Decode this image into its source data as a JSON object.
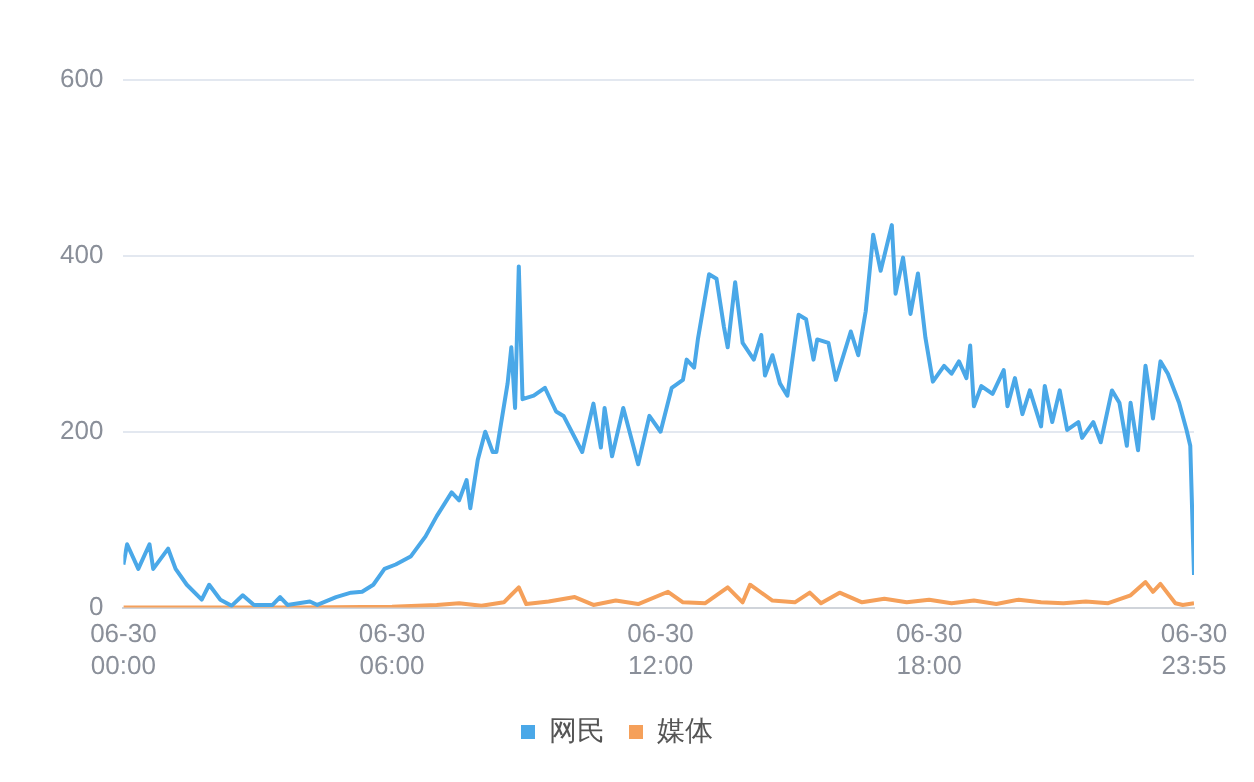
{
  "chart_data": {
    "type": "line",
    "xlim": [
      "--06-30T00:00",
      "--06-30T23:55"
    ],
    "ylim": [
      0,
      600
    ],
    "yticks": [
      0,
      200,
      400,
      600
    ],
    "xticks": [
      {
        "value": "--06-30T00:00",
        "label": "06-30\n00:00"
      },
      {
        "value": "--06-30T06:00",
        "label": "06-30\n06:00"
      },
      {
        "value": "--06-30T12:00",
        "label": "06-30\n12:00"
      },
      {
        "value": "--06-30T18:00",
        "label": "06-30\n18:00"
      },
      {
        "value": "--06-30T23:55",
        "label": "06-30\n23:55"
      }
    ],
    "grid": "y",
    "legend": "bottom",
    "marker": "none",
    "line_style": "solid",
    "series": [
      {
        "name": "网民",
        "color": "#4aa8e8",
        "x": [
          "--06-30T00:00",
          "--06-30T00:05",
          "--06-30T00:20",
          "--06-30T00:35",
          "--06-30T00:40",
          "--06-30T01:00",
          "--06-30T01:10",
          "--06-30T01:25",
          "--06-30T01:45",
          "--06-30T01:55",
          "--06-30T02:10",
          "--06-30T02:25",
          "--06-30T02:40",
          "--06-30T02:55",
          "--06-30T03:20",
          "--06-30T03:30",
          "--06-30T03:40",
          "--06-30T04:10",
          "--06-30T04:20",
          "--06-30T04:45",
          "--06-30T05:05",
          "--06-30T05:20",
          "--06-30T05:35",
          "--06-30T05:50",
          "--06-30T06:05",
          "--06-30T06:25",
          "--06-30T06:45",
          "--06-30T07:00",
          "--06-30T07:20",
          "--06-30T07:30",
          "--06-30T07:40",
          "--06-30T07:45",
          "--06-30T07:55",
          "--06-30T08:05",
          "--06-30T08:15",
          "--06-30T08:20",
          "--06-30T08:35",
          "--06-30T08:40",
          "--06-30T08:45",
          "--06-30T08:50",
          "--06-30T08:55",
          "--06-30T09:10",
          "--06-30T09:25",
          "--06-30T09:40",
          "--06-30T09:50",
          "--06-30T10:15",
          "--06-30T10:30",
          "--06-30T10:40",
          "--06-30T10:45",
          "--06-30T10:55",
          "--06-30T11:10",
          "--06-30T11:30",
          "--06-30T11:45",
          "--06-30T12:00",
          "--06-30T12:15",
          "--06-30T12:30",
          "--06-30T12:35",
          "--06-30T12:45",
          "--06-30T12:50",
          "--06-30T13:05",
          "--06-30T13:15",
          "--06-30T13:25",
          "--06-30T13:30",
          "--06-30T13:40",
          "--06-30T13:50",
          "--06-30T14:05",
          "--06-30T14:15",
          "--06-30T14:20",
          "--06-30T14:30",
          "--06-30T14:40",
          "--06-30T14:50",
          "--06-30T15:05",
          "--06-30T15:15",
          "--06-30T15:25",
          "--06-30T15:30",
          "--06-30T15:45",
          "--06-30T15:55",
          "--06-30T16:15",
          "--06-30T16:25",
          "--06-30T16:35",
          "--06-30T16:45",
          "--06-30T16:55",
          "--06-30T17:10",
          "--06-30T17:15",
          "--06-30T17:25",
          "--06-30T17:35",
          "--06-30T17:45",
          "--06-30T17:55",
          "--06-30T18:05",
          "--06-30T18:20",
          "--06-30T18:30",
          "--06-30T18:40",
          "--06-30T18:50",
          "--06-30T18:55",
          "--06-30T19:00",
          "--06-30T19:10",
          "--06-30T19:25",
          "--06-30T19:40",
          "--06-30T19:45",
          "--06-30T19:55",
          "--06-30T20:05",
          "--06-30T20:15",
          "--06-30T20:30",
          "--06-30T20:35",
          "--06-30T20:45",
          "--06-30T20:55",
          "--06-30T21:05",
          "--06-30T21:20",
          "--06-30T21:25",
          "--06-30T21:40",
          "--06-30T21:50",
          "--06-30T22:05",
          "--06-30T22:15",
          "--06-30T22:25",
          "--06-30T22:30",
          "--06-30T22:40",
          "--06-30T22:50",
          "--06-30T22:55",
          "--06-30T23:00",
          "--06-30T23:10",
          "--06-30T23:20",
          "--06-30T23:35",
          "--06-30T23:45",
          "--06-30T23:50",
          "--06-30T23:55"
        ],
        "values": [
          49,
          72,
          44,
          72,
          44,
          67,
          44,
          26,
          9,
          26,
          9,
          2,
          14,
          3,
          3,
          12,
          3,
          7,
          3,
          12,
          17,
          18,
          26,
          44,
          49,
          58,
          81,
          104,
          131,
          122,
          145,
          113,
          168,
          200,
          177,
          177,
          255,
          296,
          227,
          388,
          237,
          241,
          250,
          223,
          218,
          177,
          232,
          182,
          227,
          172,
          227,
          163,
          218,
          200,
          250,
          259,
          282,
          273,
          305,
          379,
          374,
          319,
          296,
          370,
          301,
          282,
          310,
          264,
          287,
          255,
          241,
          333,
          328,
          282,
          305,
          301,
          259,
          314,
          287,
          337,
          424,
          383,
          435,
          357,
          398,
          334,
          380,
          307,
          257,
          275,
          266,
          280,
          261,
          298,
          229,
          252,
          243,
          270,
          229,
          261,
          220,
          247,
          206,
          252,
          211,
          247,
          202,
          211,
          193,
          211,
          188,
          247,
          233,
          184,
          233,
          179,
          275,
          247,
          215,
          280,
          266,
          233,
          202,
          184,
          37
        ]
      },
      {
        "name": "媒体",
        "color": "#f5a05a",
        "x": [
          "--06-30T00:00",
          "--06-30T02:00",
          "--06-30T04:00",
          "--06-30T06:00",
          "--06-30T07:00",
          "--06-30T07:30",
          "--06-30T08:00",
          "--06-30T08:30",
          "--06-30T08:50",
          "--06-30T09:00",
          "--06-30T09:30",
          "--06-30T10:05",
          "--06-30T10:30",
          "--06-30T11:00",
          "--06-30T11:30",
          "--06-30T12:10",
          "--06-30T12:30",
          "--06-30T13:00",
          "--06-30T13:30",
          "--06-30T13:50",
          "--06-30T14:00",
          "--06-30T14:30",
          "--06-30T15:00",
          "--06-30T15:20",
          "--06-30T15:35",
          "--06-30T16:00",
          "--06-30T16:30",
          "--06-30T17:00",
          "--06-30T17:30",
          "--06-30T18:00",
          "--06-30T18:30",
          "--06-30T19:00",
          "--06-30T19:30",
          "--06-30T20:00",
          "--06-30T20:30",
          "--06-30T21:00",
          "--06-30T21:30",
          "--06-30T22:00",
          "--06-30T22:30",
          "--06-30T22:50",
          "--06-30T23:00",
          "--06-30T23:10",
          "--06-30T23:30",
          "--06-30T23:40",
          "--06-30T23:55"
        ],
        "values": [
          0,
          0,
          0,
          1,
          3,
          5,
          2,
          6,
          23,
          4,
          7,
          12,
          3,
          8,
          4,
          18,
          6,
          5,
          23,
          6,
          26,
          8,
          6,
          17,
          5,
          17,
          6,
          10,
          6,
          9,
          5,
          8,
          4,
          9,
          6,
          5,
          7,
          5,
          14,
          29,
          18,
          27,
          5,
          3,
          5
        ]
      }
    ]
  }
}
